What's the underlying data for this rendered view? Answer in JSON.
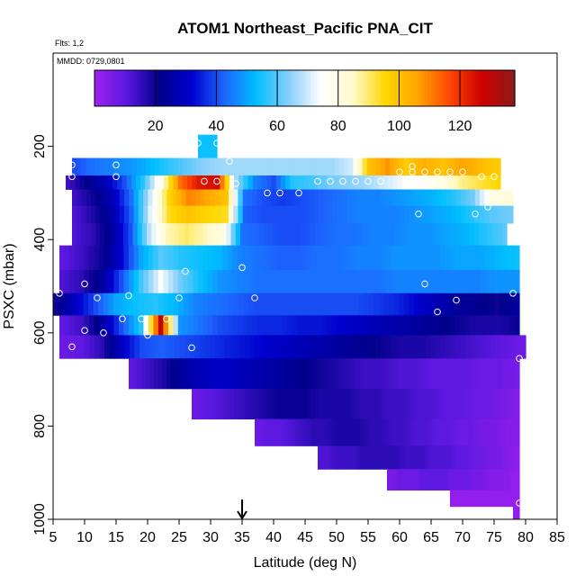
{
  "chart_data": {
    "type": "heatmap",
    "title": "ATOM1 Northeast_Pacific PNA_CIT",
    "flights_label": "Flts: 1,2",
    "dates_label": "MMDD: 0729,0801",
    "xlabel": "Latitude (deg N)",
    "ylabel": "PSXC (mbar)",
    "xlim": [
      5,
      85
    ],
    "ylim": [
      1000,
      0
    ],
    "x_ticks": [
      5,
      10,
      15,
      20,
      25,
      30,
      35,
      40,
      45,
      50,
      55,
      60,
      65,
      70,
      75,
      80,
      85
    ],
    "y_ticks": [
      200,
      400,
      600,
      800,
      1000
    ],
    "colorbar": {
      "range": [
        0,
        138
      ],
      "ticks": [
        20,
        40,
        60,
        80,
        100,
        120
      ],
      "colors": [
        "#a020f0",
        "#5a18e0",
        "#00008b",
        "#0000cd",
        "#1e64ff",
        "#00bfff",
        "#87cefa",
        "#ffffff",
        "#fffacd",
        "#ffd700",
        "#ffa500",
        "#ff4500",
        "#cd0000",
        "#8b1a1a"
      ]
    },
    "arrow_latitude": 35,
    "layers": [
      {
        "p": 200,
        "x0": 28,
        "x1": 31,
        "vals": [
          54,
          54
        ]
      },
      {
        "p": 250,
        "x0": 8,
        "x1": 76,
        "vals": [
          40,
          44,
          46,
          48,
          52,
          56,
          60,
          64,
          66,
          66,
          66,
          66,
          66,
          66,
          66,
          70,
          100,
          108,
          98,
          104,
          100,
          106,
          102,
          98
        ]
      },
      {
        "p": 275,
        "x0": 7,
        "x1": 76,
        "vals": [
          14,
          22,
          28,
          40,
          56,
          80,
          112,
          124,
          126,
          66,
          46,
          40,
          56,
          58,
          62,
          64,
          66,
          70,
          74,
          76,
          80,
          88,
          92,
          96
        ]
      },
      {
        "p": 310,
        "x0": 8,
        "x1": 78,
        "vals": [
          14,
          20,
          28,
          44,
          70,
          96,
          110,
          106,
          100,
          44,
          40,
          38,
          40,
          42,
          44,
          46,
          46,
          48,
          50,
          52,
          56,
          62,
          80,
          82
        ]
      },
      {
        "p": 345,
        "x0": 8,
        "x1": 78,
        "vals": [
          12,
          18,
          26,
          42,
          72,
          94,
          100,
          96,
          94,
          42,
          40,
          40,
          40,
          42,
          44,
          46,
          46,
          46,
          48,
          50,
          52,
          56,
          60,
          62
        ]
      },
      {
        "p": 385,
        "x0": 8,
        "x1": 77,
        "vals": [
          12,
          16,
          24,
          40,
          68,
          86,
          90,
          86,
          80,
          44,
          42,
          40,
          40,
          42,
          44,
          44,
          46,
          46,
          48,
          48,
          50,
          52,
          56,
          60
        ]
      },
      {
        "p": 440,
        "x0": 6,
        "x1": 79,
        "vals": [
          10,
          14,
          20,
          32,
          50,
          60,
          56,
          54,
          52,
          46,
          44,
          42,
          42,
          44,
          44,
          46,
          46,
          48,
          48,
          48,
          50,
          50,
          52,
          54
        ]
      },
      {
        "p": 490,
        "x0": 6,
        "x1": 79,
        "vals": [
          12,
          16,
          24,
          40,
          58,
          74,
          62,
          54,
          48,
          46,
          44,
          44,
          44,
          44,
          44,
          44,
          44,
          46,
          46,
          46,
          46,
          46,
          48,
          48
        ]
      },
      {
        "p": 540,
        "x0": 5,
        "x1": 79,
        "vals": [
          20,
          30,
          40,
          50,
          54,
          56,
          52,
          46,
          44,
          42,
          40,
          40,
          40,
          40,
          40,
          40,
          38,
          36,
          32,
          28,
          24,
          22,
          20,
          24
        ]
      },
      {
        "p": 585,
        "x0": 6,
        "x1": 79,
        "vals": [
          10,
          14,
          24,
          40,
          56,
          130,
          48,
          44,
          40,
          38,
          36,
          36,
          34,
          34,
          32,
          30,
          28,
          26,
          24,
          22,
          20,
          18,
          18,
          20
        ]
      },
      {
        "p": 625,
        "x0": 6,
        "x1": 80,
        "vals": [
          8,
          10,
          16,
          30,
          40,
          42,
          40,
          38,
          36,
          34,
          32,
          30,
          28,
          26,
          24,
          22,
          20,
          18,
          18,
          16,
          14,
          12,
          10,
          8
        ]
      },
      {
        "p": 685,
        "x0": 17,
        "x1": 79,
        "vals": [
          10,
          14,
          18,
          24,
          28,
          30,
          30,
          28,
          26,
          24,
          22,
          20,
          18,
          16,
          14,
          14,
          12,
          12,
          10,
          10,
          10,
          8,
          8,
          6
        ]
      },
      {
        "p": 755,
        "x0": 27,
        "x1": 79,
        "vals": [
          8,
          10,
          12,
          14,
          16,
          18,
          20,
          20,
          20,
          18,
          18,
          18,
          16,
          16,
          14,
          14,
          12,
          12,
          10,
          10,
          8,
          8,
          6,
          4
        ]
      },
      {
        "p": 815,
        "x0": 37,
        "x1": 79,
        "vals": [
          8,
          10,
          10,
          12,
          14,
          16,
          16,
          18,
          18,
          18,
          16,
          16,
          14,
          14,
          12,
          12,
          10,
          10,
          8,
          8,
          6,
          6,
          4,
          4
        ]
      },
      {
        "p": 870,
        "x0": 47,
        "x1": 79,
        "vals": [
          12,
          12,
          14,
          14,
          14,
          16,
          16,
          16,
          16,
          16,
          14,
          14,
          14,
          12,
          12,
          12,
          10,
          10,
          8,
          8,
          6,
          6,
          4,
          2
        ]
      },
      {
        "p": 915,
        "x0": 58,
        "x1": 79,
        "vals": [
          6,
          6,
          8,
          8,
          8,
          8,
          10,
          10,
          10,
          10,
          10,
          8,
          8,
          8,
          8,
          6,
          6,
          6,
          4,
          4,
          4,
          4,
          2,
          2
        ]
      },
      {
        "p": 960,
        "x0": 68,
        "x1": 79,
        "vals": [
          2,
          2,
          2,
          2,
          2,
          2,
          2,
          2,
          2,
          2,
          2,
          2
        ]
      },
      {
        "p": 985,
        "x0": 78,
        "x1": 79,
        "vals": [
          2
        ]
      }
    ],
    "obs_points": [
      [
        28,
        193
      ],
      [
        31,
        193
      ],
      [
        8,
        240
      ],
      [
        15,
        240
      ],
      [
        21,
        218
      ],
      [
        33,
        232
      ],
      [
        62,
        243
      ],
      [
        8,
        265
      ],
      [
        15,
        265
      ],
      [
        22,
        278
      ],
      [
        29,
        275
      ],
      [
        31,
        275
      ],
      [
        34,
        280
      ],
      [
        39,
        300
      ],
      [
        41,
        300
      ],
      [
        44,
        300
      ],
      [
        47,
        275
      ],
      [
        49,
        275
      ],
      [
        51,
        275
      ],
      [
        53,
        275
      ],
      [
        55,
        275
      ],
      [
        57,
        275
      ],
      [
        60,
        255
      ],
      [
        62,
        255
      ],
      [
        64,
        255
      ],
      [
        66,
        255
      ],
      [
        68,
        255
      ],
      [
        70,
        255
      ],
      [
        73,
        265
      ],
      [
        75,
        265
      ],
      [
        74,
        330
      ],
      [
        72,
        345
      ],
      [
        63,
        345
      ],
      [
        26,
        468
      ],
      [
        35,
        460
      ],
      [
        64,
        495
      ],
      [
        10,
        495
      ],
      [
        6,
        515
      ],
      [
        12,
        525
      ],
      [
        17,
        520
      ],
      [
        25,
        525
      ],
      [
        37,
        525
      ],
      [
        69,
        530
      ],
      [
        78,
        515
      ],
      [
        16,
        570
      ],
      [
        19,
        570
      ],
      [
        23,
        570
      ],
      [
        66,
        555
      ],
      [
        10,
        595
      ],
      [
        13,
        600
      ],
      [
        20,
        605
      ],
      [
        8,
        630
      ],
      [
        27,
        632
      ],
      [
        79,
        655
      ],
      [
        79,
        965
      ]
    ]
  }
}
